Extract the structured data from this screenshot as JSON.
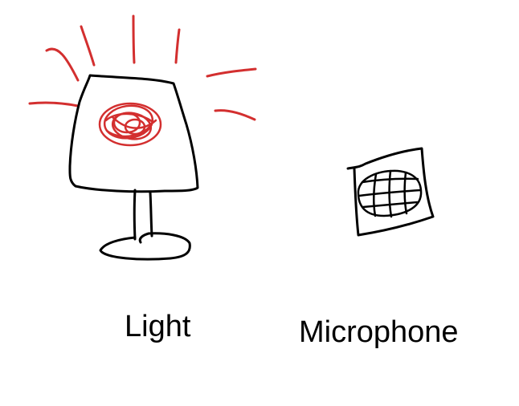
{
  "labels": {
    "light": "Light",
    "microphone": "Microphone"
  },
  "icons": {
    "light": "lamp-icon",
    "microphone": "microphone-icon"
  },
  "colors": {
    "ink": "#000000",
    "light_accent": "#d32f2f",
    "background": "#ffffff"
  }
}
